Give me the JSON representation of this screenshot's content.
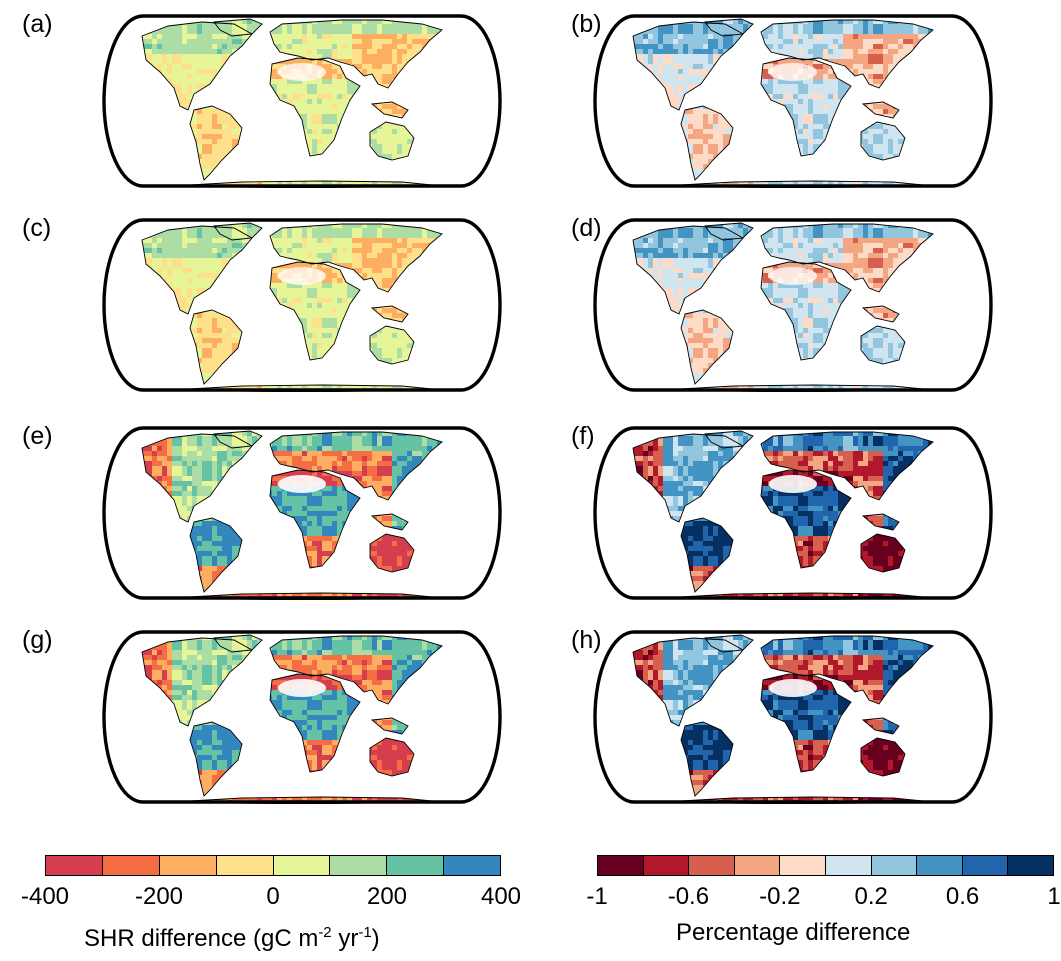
{
  "panels": [
    {
      "label": "(a)",
      "scale": "shr",
      "pattern": "mild"
    },
    {
      "label": "(b)",
      "scale": "pct",
      "pattern": "mild"
    },
    {
      "label": "(c)",
      "scale": "shr",
      "pattern": "mild"
    },
    {
      "label": "(d)",
      "scale": "pct",
      "pattern": "mild"
    },
    {
      "label": "(e)",
      "scale": "shr",
      "pattern": "strong"
    },
    {
      "label": "(f)",
      "scale": "pct",
      "pattern": "strong"
    },
    {
      "label": "(g)",
      "scale": "shr",
      "pattern": "strong"
    },
    {
      "label": "(h)",
      "scale": "pct",
      "pattern": "strong"
    }
  ],
  "colorbars": {
    "shr": {
      "colors": [
        "#d53e4f",
        "#f46d43",
        "#fdae61",
        "#fee08b",
        "#e6f598",
        "#abdda4",
        "#66c2a5",
        "#3288bd"
      ],
      "ticks": [
        "-400",
        "-200",
        "0",
        "200",
        "400"
      ],
      "label_main": "SHR difference (gC m",
      "label_sup1": "-2",
      "label_mid": " yr",
      "label_sup2": "-1",
      "label_end": ")"
    },
    "pct": {
      "colors": [
        "#67001f",
        "#b2182b",
        "#d6604d",
        "#f4a582",
        "#fddbc7",
        "#d1e5f0",
        "#92c5de",
        "#4393c3",
        "#2166ac",
        "#053061"
      ],
      "ticks": [
        "-1",
        "-0.6",
        "-0.2",
        "0.2",
        "0.6",
        "1"
      ],
      "label": "Percentage difference"
    }
  }
}
